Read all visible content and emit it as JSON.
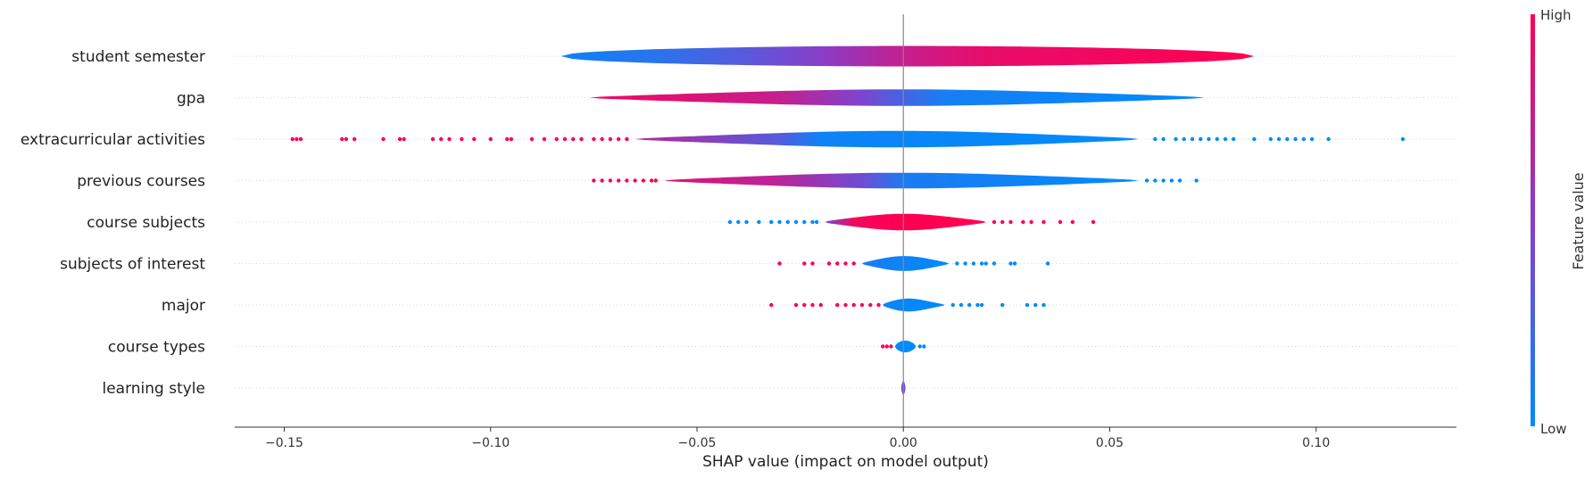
{
  "chart_data": {
    "type": "violin",
    "title": "",
    "xlabel": "SHAP value (impact on model output)",
    "ylabel": "",
    "xlim": [
      -0.162,
      0.134
    ],
    "xticks": [
      -0.15,
      -0.1,
      -0.05,
      0.0,
      0.05,
      0.1
    ],
    "xtick_labels": [
      "−0.15",
      "−0.10",
      "−0.05",
      "0.00",
      "0.05",
      "0.10"
    ],
    "grid": false,
    "colorbar": {
      "label": "Feature value",
      "high_label": "High",
      "low_label": "Low",
      "high_color": "#ff0052",
      "mid_color": "#8a3dc9",
      "low_color": "#008bfb"
    },
    "features": [
      {
        "name": "student semester",
        "min": -0.083,
        "max": 0.085,
        "core": [
          -0.083,
          0.085
        ],
        "half_width": 0.52,
        "outliers_low": [],
        "outliers_high": [],
        "color_stops": [
          [
            -0.083,
            0.05
          ],
          [
            -0.06,
            0.15
          ],
          [
            -0.04,
            0.3
          ],
          [
            -0.02,
            0.5
          ],
          [
            0.0,
            0.75
          ],
          [
            0.02,
            0.9
          ],
          [
            0.085,
            1.0
          ]
        ]
      },
      {
        "name": "gpa",
        "min": -0.076,
        "max": 0.073,
        "core": [
          -0.076,
          0.073
        ],
        "half_width": 0.42,
        "outliers_low": [],
        "outliers_high": [],
        "color_stops": [
          [
            -0.076,
            0.95
          ],
          [
            -0.03,
            0.75
          ],
          [
            -0.01,
            0.45
          ],
          [
            0.0,
            0.25
          ],
          [
            0.01,
            0.08
          ],
          [
            0.073,
            0.0
          ]
        ]
      },
      {
        "name": "extracurricular activities",
        "min": -0.148,
        "max": 0.121,
        "core": [
          -0.065,
          0.057
        ],
        "half_width": 0.42,
        "outliers_low": [
          -0.148,
          -0.147,
          -0.146,
          -0.136,
          -0.135,
          -0.133,
          -0.126,
          -0.122,
          -0.121,
          -0.114,
          -0.112,
          -0.11,
          -0.107,
          -0.104,
          -0.1,
          -0.096,
          -0.095,
          -0.09,
          -0.087,
          -0.084,
          -0.082,
          -0.08,
          -0.078,
          -0.075,
          -0.073,
          -0.071,
          -0.069,
          -0.067
        ],
        "outliers_high": [
          0.061,
          0.063,
          0.066,
          0.068,
          0.07,
          0.072,
          0.074,
          0.076,
          0.078,
          0.08,
          0.085,
          0.089,
          0.091,
          0.093,
          0.095,
          0.097,
          0.099,
          0.103,
          0.121
        ],
        "color_stops": [
          [
            -0.065,
            0.7
          ],
          [
            -0.03,
            0.3
          ],
          [
            -0.02,
            0.05
          ],
          [
            0.057,
            0.0
          ]
        ]
      },
      {
        "name": "previous courses",
        "min": -0.075,
        "max": 0.071,
        "core": [
          -0.058,
          0.057
        ],
        "half_width": 0.4,
        "outliers_low": [
          -0.075,
          -0.073,
          -0.071,
          -0.069,
          -0.067,
          -0.065,
          -0.063,
          -0.061,
          -0.06
        ],
        "outliers_high": [
          0.059,
          0.061,
          0.063,
          0.065,
          0.067,
          0.071
        ],
        "color_stops": [
          [
            -0.058,
            0.85
          ],
          [
            -0.03,
            0.7
          ],
          [
            -0.01,
            0.4
          ],
          [
            0.0,
            0.1
          ],
          [
            0.057,
            0.0
          ]
        ]
      },
      {
        "name": "course subjects",
        "min": -0.042,
        "max": 0.046,
        "core": [
          -0.019,
          0.02
        ],
        "half_width": 0.42,
        "outliers_low": [
          -0.042,
          -0.04,
          -0.038,
          -0.035,
          -0.032,
          -0.03,
          -0.028,
          -0.026,
          -0.024,
          -0.022,
          -0.021
        ],
        "outliers_high": [
          0.022,
          0.024,
          0.026,
          0.029,
          0.031,
          0.034,
          0.038,
          0.041,
          0.046
        ],
        "color_stops": [
          [
            -0.019,
            0.4
          ],
          [
            -0.012,
            0.95
          ],
          [
            -0.002,
            1.0
          ],
          [
            0.0,
            1.0
          ],
          [
            0.02,
            1.0
          ]
        ]
      },
      {
        "name": "subjects of interest",
        "min": -0.03,
        "max": 0.035,
        "core": [
          -0.01,
          0.011
        ],
        "half_width": 0.38,
        "outliers_low": [
          -0.03,
          -0.024,
          -0.022,
          -0.018,
          -0.016,
          -0.014,
          -0.012
        ],
        "outliers_high": [
          0.013,
          0.015,
          0.017,
          0.019,
          0.02,
          0.022,
          0.026,
          0.027,
          0.035
        ],
        "color_stops": [
          [
            -0.01,
            0.1
          ],
          [
            0.011,
            0.0
          ]
        ]
      },
      {
        "name": "major",
        "min": -0.032,
        "max": 0.034,
        "core": [
          -0.005,
          0.01
        ],
        "half_width": 0.34,
        "outliers_low": [
          -0.032,
          -0.026,
          -0.024,
          -0.022,
          -0.02,
          -0.016,
          -0.014,
          -0.012,
          -0.01,
          -0.008,
          -0.006
        ],
        "outliers_high": [
          0.012,
          0.014,
          0.016,
          0.018,
          0.019,
          0.024,
          0.03,
          0.032,
          0.034
        ],
        "color_stops": [
          [
            -0.005,
            0.05
          ],
          [
            0.01,
            0.0
          ]
        ]
      },
      {
        "name": "course types",
        "min": -0.005,
        "max": 0.005,
        "core": [
          -0.002,
          0.003
        ],
        "half_width": 0.3,
        "outliers_low": [
          -0.005,
          -0.004,
          -0.003
        ],
        "outliers_high": [
          0.004,
          0.005
        ],
        "color_stops": [
          [
            -0.002,
            0.0
          ],
          [
            0.003,
            0.0
          ]
        ]
      },
      {
        "name": "learning style",
        "min": -0.0005,
        "max": 0.0005,
        "core": [
          -0.0005,
          0.0005
        ],
        "half_width": 0.34,
        "outliers_low": [],
        "outliers_high": [],
        "color_stops": [
          [
            -0.0005,
            0.5
          ],
          [
            0.0005,
            0.3
          ]
        ]
      }
    ]
  }
}
